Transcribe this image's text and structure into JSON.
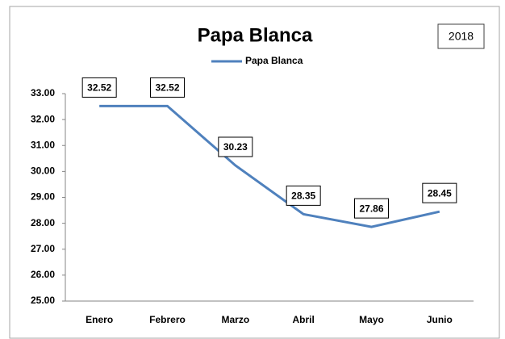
{
  "chart_data": {
    "type": "line",
    "title": "Papa Blanca",
    "annotation": "2018",
    "categories": [
      "Enero",
      "Febrero",
      "Marzo",
      "Abril",
      "Mayo",
      "Junio"
    ],
    "series": [
      {
        "name": "Papa Blanca",
        "color": "#4f81bd",
        "values": [
          32.52,
          32.52,
          30.23,
          28.35,
          27.86,
          28.45
        ]
      }
    ],
    "ylim": [
      25,
      33
    ],
    "yticks": [
      {
        "value": 25,
        "label": "25.00"
      },
      {
        "value": 26,
        "label": "26.00"
      },
      {
        "value": 27,
        "label": "27.00"
      },
      {
        "value": 28,
        "label": "28.00"
      },
      {
        "value": 29,
        "label": "29.00"
      },
      {
        "value": 30,
        "label": "30.00"
      },
      {
        "value": 31,
        "label": "31.00"
      },
      {
        "value": 32,
        "label": "32.00"
      },
      {
        "value": 33,
        "label": "33.00"
      }
    ],
    "grid": false,
    "legend": "top"
  }
}
